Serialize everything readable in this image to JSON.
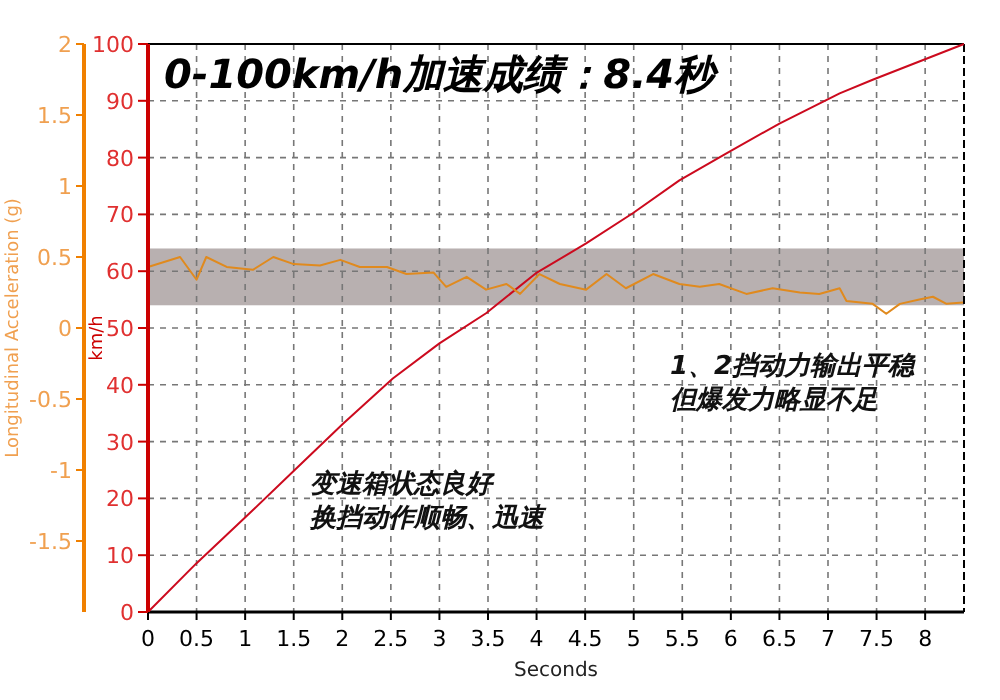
{
  "chart_data": {
    "type": "line",
    "title": "0-100km/h加速成绩：8.4秒",
    "xlabel": "Seconds",
    "ylabel": "km/h",
    "y2label": "Longitudinal Acceleration (g)",
    "annotations": [
      "1、2挡动力输出平稳",
      "但爆发力略显不足",
      "变速箱状态良好",
      "换挡动作顺畅、迅速"
    ],
    "xlim": [
      0,
      8.4
    ],
    "xticks": [
      0,
      0.5,
      1,
      1.5,
      2,
      2.5,
      3,
      3.5,
      4,
      4.5,
      5,
      5.5,
      6,
      6.5,
      7,
      7.5,
      8
    ],
    "ylim": [
      0,
      100
    ],
    "yticks": [
      0,
      10,
      20,
      30,
      40,
      50,
      60,
      70,
      80,
      90,
      100
    ],
    "y2lim": [
      -2,
      2
    ],
    "y2ticks": [
      -1.5,
      -1,
      -0.5,
      0,
      0.5,
      1,
      1.5,
      2
    ],
    "grid": true,
    "bands": [
      {
        "axis": "y",
        "from": 54,
        "to": 64,
        "color": "#b8b0b0"
      }
    ],
    "series": [
      {
        "color": "#cc0a1e",
        "axis": "y",
        "x": [
          0,
          0.5,
          1.01,
          1.51,
          2.01,
          2.52,
          3.0,
          3.48,
          3.99,
          4.51,
          4.99,
          5.47,
          5.95,
          6.5,
          7.12,
          7.46,
          8.4
        ],
        "values": [
          0,
          8.6,
          16.8,
          25,
          33.2,
          41.1,
          47.3,
          52.6,
          59.6,
          64.9,
          70.2,
          76,
          80.7,
          86,
          91.3,
          93.7,
          100
        ]
      },
      {
        "color": "#e08a1e",
        "axis": "y2",
        "x": [
          0,
          0.33,
          0.5,
          0.6,
          0.81,
          1.08,
          1.29,
          1.5,
          1.77,
          1.98,
          2.18,
          2.46,
          2.66,
          2.94,
          3.07,
          3.28,
          3.48,
          3.69,
          3.83,
          4.03,
          4.24,
          4.51,
          4.72,
          4.92,
          5.2,
          5.47,
          5.68,
          5.88,
          6.16,
          6.43,
          6.71,
          6.91,
          7.12,
          7.19,
          7.46,
          7.6,
          7.74,
          7.94,
          8.08,
          8.22,
          8.39
        ],
        "values": [
          0.43,
          0.5,
          0.34,
          0.5,
          0.43,
          0.41,
          0.5,
          0.45,
          0.44,
          0.48,
          0.43,
          0.43,
          0.38,
          0.39,
          0.29,
          0.36,
          0.27,
          0.31,
          0.24,
          0.38,
          0.31,
          0.27,
          0.38,
          0.28,
          0.38,
          0.31,
          0.29,
          0.31,
          0.24,
          0.28,
          0.25,
          0.24,
          0.28,
          0.19,
          0.17,
          0.1,
          0.17,
          0.2,
          0.22,
          0.17,
          0.18
        ]
      }
    ]
  }
}
